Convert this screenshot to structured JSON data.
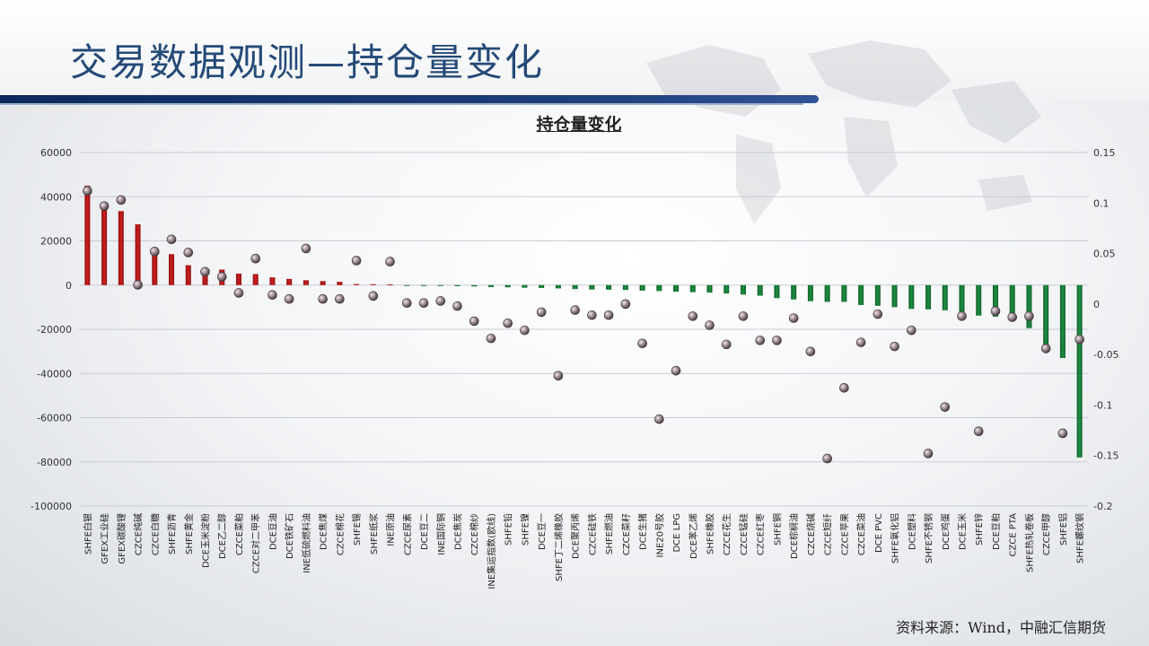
{
  "page": {
    "title": "交易数据观测—持仓量变化",
    "source": "资料来源：Wind，中融汇信期货"
  },
  "colors": {
    "title": "#244a77",
    "positive_bar": "#cc1f1f",
    "negative_bar": "#1e9141",
    "marker": "#8f7f86"
  },
  "chart_data": {
    "type": "bar",
    "title": "持仓量变化",
    "xlabel": "",
    "ylabel": "",
    "ylim": [
      -100000,
      60000
    ],
    "y_ticks": [
      "60000",
      "40000",
      "20000",
      "0",
      "-20000",
      "-40000",
      "-60000",
      "-80000",
      "-100000"
    ],
    "y2lim": [
      -0.2,
      0.15
    ],
    "y2_ticks": [
      "0.15",
      "0.1",
      "0.05",
      "0",
      "-0.05",
      "-0.1",
      "-0.15",
      "-0.2"
    ],
    "grid": true,
    "categories": [
      "SHFE白银",
      "GFEX工业硅",
      "GFEX碳酸锂",
      "CZCE纯碱",
      "CZCE白糖",
      "SHFE沥青",
      "SHFE黄金",
      "DCE玉米淀粉",
      "DCE乙二醇",
      "CZCE菜粕",
      "CZCE对二甲苯",
      "DCE豆油",
      "DCE铁矿石",
      "INE低硫燃料油",
      "DCE焦煤",
      "CZCE棉花",
      "SHFE锡",
      "SHFE纸浆",
      "INE原油",
      "CZCE尿素",
      "DCE豆二",
      "INE国际铜",
      "DCE焦炭",
      "CZCE棉纱",
      "INE集运指数(欧线)",
      "SHFE铅",
      "SHFE镍",
      "DCE豆一",
      "SHFE丁二烯橡胶",
      "DCE聚丙烯",
      "CZCE硅铁",
      "SHFE燃油",
      "CZCE菜籽",
      "DCE生猪",
      "INE20号胶",
      "DCE LPG",
      "DCE苯乙烯",
      "SHFE橡胶",
      "CZCE花生",
      "CZCE锰硅",
      "CZCE红枣",
      "SHFE铜",
      "DCE棕榈油",
      "CZCE烧碱",
      "CZCE短纤",
      "CZCE苹果",
      "CZCE菜油",
      "DCE PVC",
      "SHFE氧化铝",
      "DCE塑料",
      "SHFE不锈钢",
      "DCE鸡蛋",
      "DCE玉米",
      "SHFE锌",
      "DCE豆粕",
      "CZCE PTA",
      "SHFE热轧卷板",
      "CZCE甲醇",
      "SHFE铝",
      "SHFE螺纹钢"
    ],
    "series": [
      {
        "name": "",
        "type": "bar",
        "axis": "left",
        "values": [
          45000,
          35500,
          33500,
          27500,
          16500,
          14000,
          9000,
          7000,
          7000,
          5200,
          5000,
          3500,
          2800,
          2200,
          1800,
          1500,
          500,
          400,
          300,
          -300,
          -300,
          -400,
          -500,
          -600,
          -900,
          -1000,
          -1200,
          -1300,
          -1500,
          -1800,
          -2000,
          -2100,
          -2200,
          -2500,
          -2700,
          -3000,
          -3200,
          -3400,
          -3800,
          -4300,
          -4800,
          -5900,
          -6500,
          -7300,
          -7600,
          -7600,
          -9000,
          -9400,
          -10000,
          -10800,
          -11000,
          -11400,
          -13500,
          -13800,
          -14300,
          -15200,
          -19500,
          -30000,
          -33000,
          -78000
        ]
      },
      {
        "name": "",
        "type": "scatter",
        "axis": "right",
        "values": [
          0.112,
          0.097,
          0.103,
          0.019,
          0.052,
          0.064,
          0.051,
          0.032,
          0.027,
          0.011,
          0.045,
          0.009,
          0.005,
          0.055,
          0.005,
          0.005,
          0.043,
          0.008,
          0.042,
          0.001,
          0.001,
          0.003,
          -0.002,
          -0.017,
          -0.034,
          -0.019,
          -0.026,
          -0.008,
          -0.071,
          -0.006,
          -0.011,
          -0.011,
          0.0,
          -0.039,
          -0.114,
          -0.066,
          -0.012,
          -0.021,
          -0.04,
          -0.012,
          -0.036,
          -0.036,
          -0.014,
          -0.047,
          -0.153,
          -0.083,
          -0.038,
          -0.01,
          -0.042,
          -0.026,
          -0.148,
          -0.102,
          -0.012,
          -0.126,
          -0.007,
          -0.013,
          -0.012,
          -0.044,
          -0.128,
          -0.035
        ]
      }
    ]
  }
}
